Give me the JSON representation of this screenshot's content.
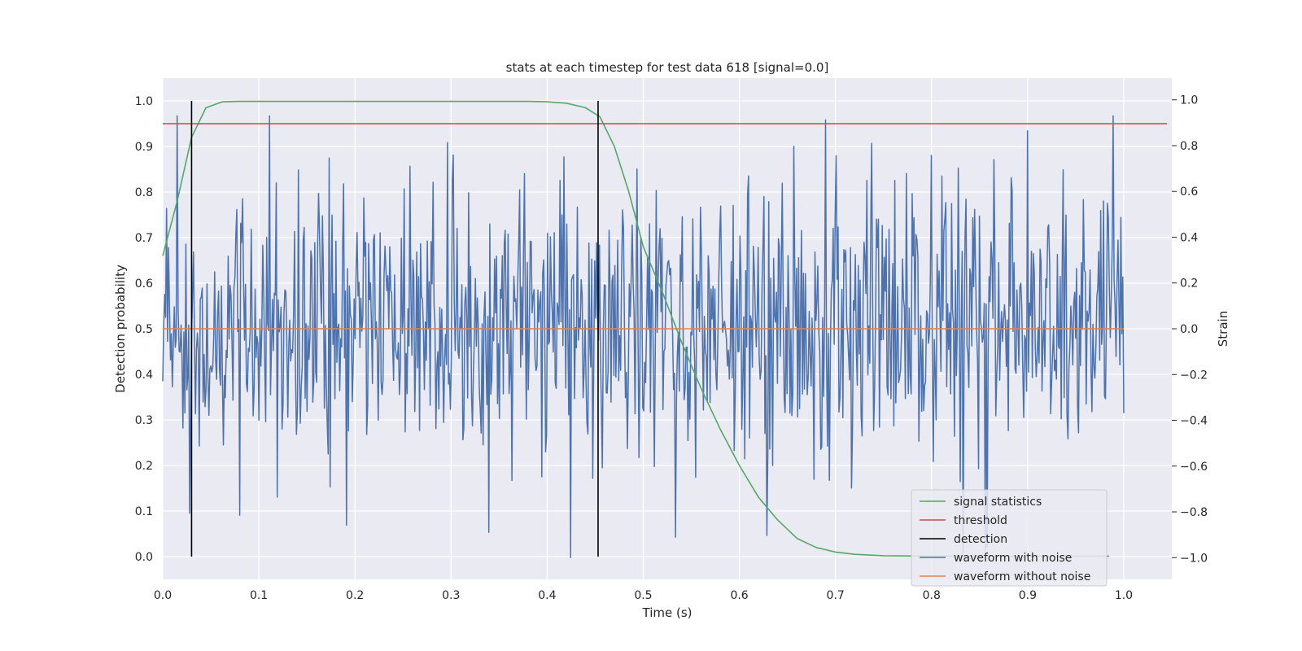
{
  "chart_data": {
    "type": "line",
    "title": "stats at each timestep for test data 618 [signal=0.0]",
    "xlabel": "Time (s)",
    "ylabel": "Detection probability",
    "ylabel_right": "Strain",
    "xlim": [
      0.0,
      1.05
    ],
    "ylim": [
      -0.05,
      1.05
    ],
    "ylim_right": [
      -1.095,
      1.095
    ],
    "xticks": [
      "0.0",
      "0.1",
      "0.2",
      "0.3",
      "0.4",
      "0.5",
      "0.6",
      "0.7",
      "0.8",
      "0.9",
      "1.0"
    ],
    "yticks": [
      "0.0",
      "0.1",
      "0.2",
      "0.3",
      "0.4",
      "0.5",
      "0.6",
      "0.7",
      "0.8",
      "0.9",
      "1.0"
    ],
    "yticks_right": [
      "−1.0",
      "−0.8",
      "−0.6",
      "−0.4",
      "−0.2",
      "0.0",
      "0.2",
      "0.4",
      "0.6",
      "0.8",
      "1.0"
    ],
    "grid": true,
    "legend_position": "lower-right",
    "series": [
      {
        "name": "signal statistics",
        "axis": "left",
        "color": "#55a868",
        "x": [
          0.0,
          0.015,
          0.03,
          0.045,
          0.062,
          0.08,
          0.1,
          0.2,
          0.3,
          0.38,
          0.4,
          0.42,
          0.44,
          0.455,
          0.47,
          0.485,
          0.5,
          0.52,
          0.54,
          0.56,
          0.58,
          0.6,
          0.62,
          0.64,
          0.66,
          0.68,
          0.7,
          0.72,
          0.75,
          0.8,
          0.9,
          0.985
        ],
        "y": [
          0.66,
          0.78,
          0.92,
          0.985,
          0.998,
          0.999,
          0.999,
          0.999,
          0.999,
          0.999,
          0.998,
          0.995,
          0.985,
          0.965,
          0.9,
          0.8,
          0.68,
          0.58,
          0.47,
          0.37,
          0.28,
          0.2,
          0.13,
          0.08,
          0.04,
          0.02,
          0.01,
          0.005,
          0.002,
          0.001,
          0.001,
          0.001
        ]
      },
      {
        "name": "threshold",
        "axis": "left",
        "color": "#c44e52",
        "x": [
          0.0,
          1.045
        ],
        "y": [
          0.95,
          0.95
        ]
      },
      {
        "name": "detection",
        "axis": "left",
        "color": "#000000",
        "type": "vlines",
        "x": [
          0.03,
          0.453
        ],
        "y": [
          0.0,
          1.0
        ]
      },
      {
        "name": "waveform with noise",
        "axis": "right",
        "color": "#4c72b0",
        "type": "noise",
        "x_range": [
          0.0,
          1.0
        ],
        "n_points": 1000,
        "y_range": [
          -1.0,
          0.93
        ]
      },
      {
        "name": "waveform without noise",
        "axis": "right",
        "color": "#dd8452",
        "x": [
          0.0,
          1.0
        ],
        "y": [
          0.0,
          0.0
        ]
      }
    ]
  }
}
